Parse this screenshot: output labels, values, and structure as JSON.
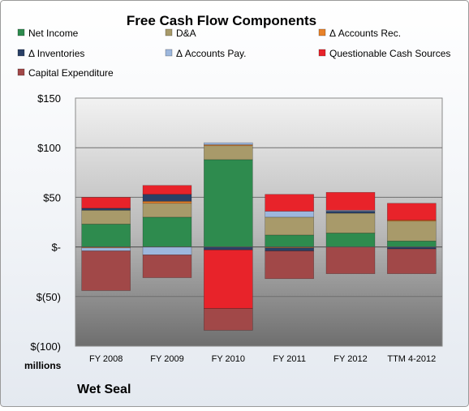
{
  "chart_data": {
    "type": "bar",
    "stacked": true,
    "title": "Free Cash Flow Components",
    "company": "Wet Seal",
    "ylabel": "millions",
    "ylim": [
      -100,
      150
    ],
    "yticks": [
      {
        "value": 150,
        "label": "$150"
      },
      {
        "value": 100,
        "label": "$100"
      },
      {
        "value": 50,
        "label": "$50"
      },
      {
        "value": 0,
        "label": "$-"
      },
      {
        "value": -50,
        "label": "$(50)"
      },
      {
        "value": -100,
        "label": "$(100)"
      }
    ],
    "grid": true,
    "legend_position": "top",
    "categories": [
      "FY 2008",
      "FY 2009",
      "FY 2010",
      "FY 2011",
      "FY 2012",
      "TTM 4-2012"
    ],
    "series": [
      {
        "name": "Net Income",
        "color": "#2E8B4E",
        "values": [
          23,
          30,
          88,
          12,
          14,
          6
        ]
      },
      {
        "name": "D&A",
        "color": "#A89A6A",
        "values": [
          14,
          14,
          14,
          18,
          20,
          20
        ]
      },
      {
        "name": "Δ Accounts Rec.",
        "color": "#E8822A",
        "values": [
          -1,
          2,
          1,
          -1,
          0,
          1
        ]
      },
      {
        "name": "Δ Inventories",
        "color": "#2A4066",
        "values": [
          2,
          7,
          -3,
          -3,
          2,
          -2
        ]
      },
      {
        "name": "Δ Accounts Pay.",
        "color": "#9DB7DD",
        "values": [
          -3,
          -8,
          2,
          6,
          1,
          0
        ]
      },
      {
        "name": "Questionable Cash Sources",
        "color": "#E8232A",
        "values": [
          11,
          9,
          -59,
          17,
          18,
          17
        ]
      },
      {
        "name": "Capital Expenditure",
        "color": "#A14848",
        "values": [
          -40,
          -23,
          -22,
          -28,
          -27,
          -25
        ]
      }
    ]
  }
}
